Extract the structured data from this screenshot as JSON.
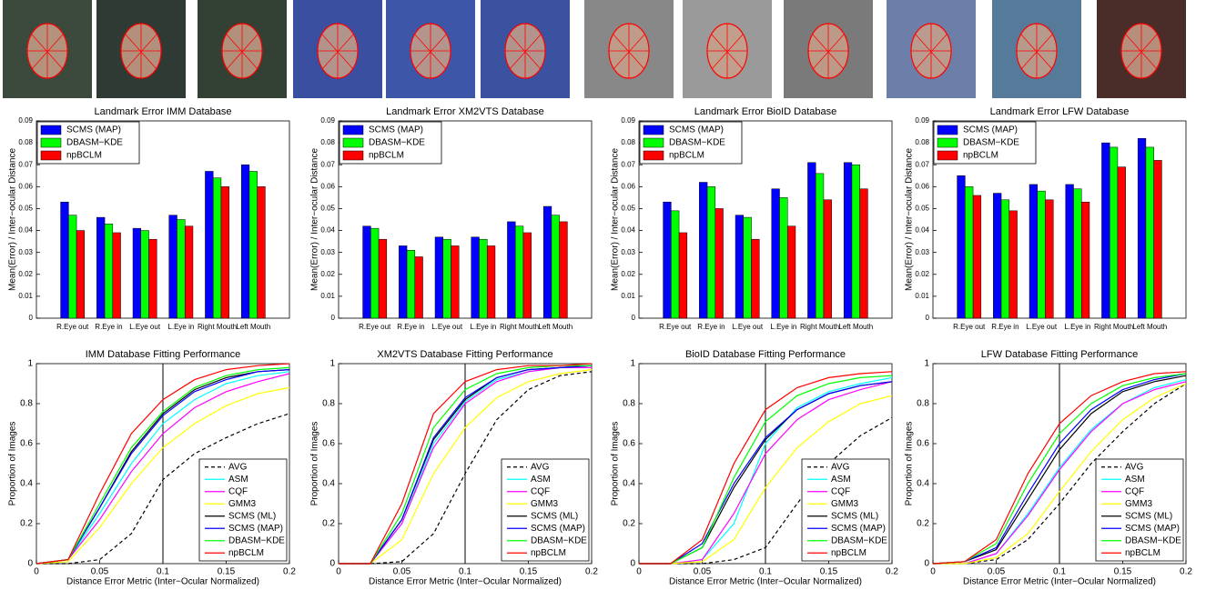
{
  "chart_data": [
    {
      "type": "bar",
      "title": "Landmark Error IMM Database",
      "ylabel": "Mean(Error) / Inter−ocular Distance",
      "categories": [
        "R.Eye out",
        "R.Eye in",
        "L.Eye out",
        "L.Eye in",
        "Right Mouth",
        "Left Mouth"
      ],
      "series": [
        {
          "name": "SCMS (MAP)",
          "color": "#0000ff",
          "values": [
            0.053,
            0.046,
            0.041,
            0.047,
            0.067,
            0.07
          ]
        },
        {
          "name": "DBASM−KDE",
          "color": "#00ff00",
          "values": [
            0.047,
            0.043,
            0.04,
            0.045,
            0.064,
            0.067
          ]
        },
        {
          "name": "npBCLM",
          "color": "#ff0000",
          "values": [
            0.04,
            0.039,
            0.036,
            0.042,
            0.06,
            0.06
          ]
        }
      ],
      "ylim": [
        0,
        0.09
      ],
      "yticks": [
        0,
        0.01,
        0.02,
        0.03,
        0.04,
        0.05,
        0.06,
        0.07,
        0.08,
        0.09
      ],
      "legend": "upper left"
    },
    {
      "type": "bar",
      "title": "Landmark Error XM2VTS Database",
      "ylabel": "Mean(Error) / Inter−ocular Distance",
      "categories": [
        "R.Eye out",
        "R.Eye in",
        "L.Eye out",
        "L.Eye in",
        "Right Mouth",
        "Left Mouth"
      ],
      "series": [
        {
          "name": "SCMS (MAP)",
          "color": "#0000ff",
          "values": [
            0.042,
            0.033,
            0.037,
            0.037,
            0.044,
            0.051
          ]
        },
        {
          "name": "DBASM−KDE",
          "color": "#00ff00",
          "values": [
            0.041,
            0.031,
            0.036,
            0.036,
            0.042,
            0.047
          ]
        },
        {
          "name": "npBCLM",
          "color": "#ff0000",
          "values": [
            0.036,
            0.028,
            0.033,
            0.033,
            0.039,
            0.044
          ]
        }
      ],
      "ylim": [
        0,
        0.09
      ],
      "yticks": [
        0,
        0.01,
        0.02,
        0.03,
        0.04,
        0.05,
        0.06,
        0.07,
        0.08,
        0.09
      ],
      "legend": "upper left"
    },
    {
      "type": "bar",
      "title": "Landmark Error BioID Database",
      "ylabel": "Mean(Error) / Inter−ocular Distance",
      "categories": [
        "R.Eye out",
        "R.Eye in",
        "L.Eye out",
        "L.Eye in",
        "Right Mouth",
        "Left Mouth"
      ],
      "series": [
        {
          "name": "SCMS (MAP)",
          "color": "#0000ff",
          "values": [
            0.053,
            0.062,
            0.047,
            0.059,
            0.071,
            0.071
          ]
        },
        {
          "name": "DBASM−KDE",
          "color": "#00ff00",
          "values": [
            0.049,
            0.06,
            0.046,
            0.055,
            0.066,
            0.07
          ]
        },
        {
          "name": "npBCLM",
          "color": "#ff0000",
          "values": [
            0.039,
            0.05,
            0.036,
            0.042,
            0.054,
            0.059
          ]
        }
      ],
      "ylim": [
        0,
        0.09
      ],
      "yticks": [
        0,
        0.01,
        0.02,
        0.03,
        0.04,
        0.05,
        0.06,
        0.07,
        0.08,
        0.09
      ],
      "legend": "upper left"
    },
    {
      "type": "bar",
      "title": "Landmark Error LFW Database",
      "ylabel": "Mean(Error) / Inter−ocular Distance",
      "categories": [
        "R.Eye out",
        "R.Eye in",
        "L.Eye out",
        "L.Eye in",
        "Right Mouth",
        "Left Mouth"
      ],
      "series": [
        {
          "name": "SCMS (MAP)",
          "color": "#0000ff",
          "values": [
            0.065,
            0.057,
            0.061,
            0.061,
            0.08,
            0.082
          ]
        },
        {
          "name": "DBASM−KDE",
          "color": "#00ff00",
          "values": [
            0.06,
            0.054,
            0.058,
            0.059,
            0.078,
            0.078
          ]
        },
        {
          "name": "npBCLM",
          "color": "#ff0000",
          "values": [
            0.056,
            0.049,
            0.054,
            0.053,
            0.069,
            0.072
          ]
        }
      ],
      "ylim": [
        0,
        0.09
      ],
      "yticks": [
        0,
        0.01,
        0.02,
        0.03,
        0.04,
        0.05,
        0.06,
        0.07,
        0.08,
        0.09
      ],
      "legend": "upper left"
    },
    {
      "type": "line",
      "title": "IMM Database Fitting Performance",
      "xlabel": "Distance Error Metric (Inter−Ocular Normalized)",
      "ylabel": "Proportion of Images",
      "x": [
        0,
        0.025,
        0.05,
        0.075,
        0.1,
        0.125,
        0.15,
        0.175,
        0.2
      ],
      "threshold": 0.1,
      "series": [
        {
          "name": "AVG",
          "color": "#000000",
          "linestyle": "dashed",
          "values": [
            0,
            0,
            0.02,
            0.15,
            0.42,
            0.55,
            0.63,
            0.7,
            0.75
          ]
        },
        {
          "name": "ASM",
          "color": "#00ffff",
          "values": [
            0,
            0.02,
            0.25,
            0.5,
            0.7,
            0.82,
            0.9,
            0.94,
            0.96
          ]
        },
        {
          "name": "CQF",
          "color": "#ff00ff",
          "values": [
            0,
            0.02,
            0.22,
            0.46,
            0.65,
            0.78,
            0.86,
            0.91,
            0.95
          ]
        },
        {
          "name": "GMM3",
          "color": "#ffff00",
          "values": [
            0,
            0.01,
            0.18,
            0.4,
            0.58,
            0.7,
            0.79,
            0.85,
            0.88
          ]
        },
        {
          "name": "SCMS (ML)",
          "color": "#000000",
          "values": [
            0,
            0.02,
            0.28,
            0.56,
            0.75,
            0.87,
            0.93,
            0.96,
            0.97
          ]
        },
        {
          "name": "SCMS (MAP)",
          "color": "#0000ff",
          "values": [
            0,
            0.02,
            0.28,
            0.55,
            0.74,
            0.86,
            0.92,
            0.96,
            0.97
          ]
        },
        {
          "name": "DBASM−KDE",
          "color": "#00ff00",
          "values": [
            0,
            0.02,
            0.3,
            0.58,
            0.76,
            0.88,
            0.94,
            0.97,
            0.98
          ]
        },
        {
          "name": "npBCLM",
          "color": "#ff0000",
          "values": [
            0,
            0.02,
            0.35,
            0.65,
            0.82,
            0.92,
            0.97,
            0.99,
            1.0
          ]
        }
      ],
      "xlim": [
        0,
        0.2
      ],
      "xticks": [
        0,
        0.05,
        0.1,
        0.15,
        0.2
      ],
      "ylim": [
        0,
        1
      ],
      "yticks": [
        0,
        0.2,
        0.4,
        0.6,
        0.8,
        1
      ],
      "legend": "lower right"
    },
    {
      "type": "line",
      "title": "XM2VTS Database Fitting Performance",
      "xlabel": "Distance Error Metric (Inter−Ocular Normalized)",
      "ylabel": "Proportion of Images",
      "x": [
        0,
        0.025,
        0.05,
        0.075,
        0.1,
        0.125,
        0.15,
        0.175,
        0.2
      ],
      "threshold": 0.1,
      "series": [
        {
          "name": "AVG",
          "color": "#000000",
          "linestyle": "dashed",
          "values": [
            0,
            0,
            0.01,
            0.15,
            0.45,
            0.72,
            0.87,
            0.94,
            0.96
          ]
        },
        {
          "name": "ASM",
          "color": "#00ffff",
          "values": [
            0,
            0,
            0.2,
            0.6,
            0.81,
            0.92,
            0.96,
            0.98,
            0.99
          ]
        },
        {
          "name": "CQF",
          "color": "#ff00ff",
          "values": [
            0,
            0,
            0.2,
            0.58,
            0.8,
            0.91,
            0.96,
            0.98,
            0.98
          ]
        },
        {
          "name": "GMM3",
          "color": "#ffff00",
          "values": [
            0,
            0,
            0.12,
            0.45,
            0.68,
            0.83,
            0.91,
            0.95,
            0.97
          ]
        },
        {
          "name": "SCMS (ML)",
          "color": "#000000",
          "values": [
            0,
            0,
            0.22,
            0.62,
            0.82,
            0.93,
            0.97,
            0.98,
            0.99
          ]
        },
        {
          "name": "SCMS (MAP)",
          "color": "#0000ff",
          "values": [
            0,
            0,
            0.22,
            0.63,
            0.83,
            0.93,
            0.97,
            0.98,
            0.99
          ]
        },
        {
          "name": "DBASM−KDE",
          "color": "#00ff00",
          "values": [
            0,
            0,
            0.25,
            0.68,
            0.87,
            0.95,
            0.98,
            0.99,
            0.99
          ]
        },
        {
          "name": "npBCLM",
          "color": "#ff0000",
          "values": [
            0,
            0,
            0.3,
            0.75,
            0.91,
            0.97,
            0.99,
            0.99,
            1.0
          ]
        }
      ],
      "xlim": [
        0,
        0.2
      ],
      "xticks": [
        0,
        0.05,
        0.1,
        0.15,
        0.2
      ],
      "ylim": [
        0,
        1
      ],
      "yticks": [
        0,
        0.2,
        0.4,
        0.6,
        0.8,
        1
      ],
      "legend": "lower right"
    },
    {
      "type": "line",
      "title": "BioID Database Fitting Performance",
      "xlabel": "Distance Error Metric (Inter−Ocular Normalized)",
      "ylabel": "Proportion of Images",
      "x": [
        0,
        0.025,
        0.05,
        0.075,
        0.1,
        0.125,
        0.15,
        0.175,
        0.2
      ],
      "threshold": 0.1,
      "series": [
        {
          "name": "AVG",
          "color": "#000000",
          "linestyle": "dashed",
          "values": [
            0,
            0,
            0,
            0.02,
            0.08,
            0.3,
            0.5,
            0.64,
            0.73
          ]
        },
        {
          "name": "ASM",
          "color": "#00ffff",
          "values": [
            0,
            0,
            0.02,
            0.2,
            0.6,
            0.78,
            0.86,
            0.9,
            0.93
          ]
        },
        {
          "name": "CQF",
          "color": "#ff00ff",
          "values": [
            0,
            0,
            0.02,
            0.25,
            0.55,
            0.72,
            0.82,
            0.87,
            0.91
          ]
        },
        {
          "name": "GMM3",
          "color": "#ffff00",
          "values": [
            0,
            0,
            0.01,
            0.12,
            0.38,
            0.58,
            0.71,
            0.8,
            0.84
          ]
        },
        {
          "name": "SCMS (ML)",
          "color": "#000000",
          "values": [
            0,
            0,
            0.08,
            0.38,
            0.62,
            0.77,
            0.85,
            0.89,
            0.91
          ]
        },
        {
          "name": "SCMS (MAP)",
          "color": "#0000ff",
          "values": [
            0,
            0,
            0.1,
            0.4,
            0.63,
            0.77,
            0.85,
            0.89,
            0.91
          ]
        },
        {
          "name": "DBASM−KDE",
          "color": "#00ff00",
          "values": [
            0,
            0,
            0.08,
            0.43,
            0.71,
            0.84,
            0.9,
            0.93,
            0.94
          ]
        },
        {
          "name": "npBCLM",
          "color": "#ff0000",
          "values": [
            0,
            0,
            0.12,
            0.5,
            0.77,
            0.88,
            0.93,
            0.95,
            0.96
          ]
        }
      ],
      "xlim": [
        0,
        0.2
      ],
      "xticks": [
        0,
        0.05,
        0.1,
        0.15,
        0.2
      ],
      "ylim": [
        0,
        1
      ],
      "yticks": [
        0,
        0.2,
        0.4,
        0.6,
        0.8,
        1
      ],
      "legend": "lower right"
    },
    {
      "type": "line",
      "title": "LFW Database Fitting Performance",
      "xlabel": "Distance Error Metric (Inter−Ocular Normalized)",
      "ylabel": "Proportion of Images",
      "x": [
        0,
        0.025,
        0.05,
        0.075,
        0.1,
        0.125,
        0.15,
        0.175,
        0.2
      ],
      "threshold": 0.1,
      "series": [
        {
          "name": "AVG",
          "color": "#000000",
          "linestyle": "dashed",
          "values": [
            0,
            0,
            0.02,
            0.12,
            0.3,
            0.5,
            0.66,
            0.8,
            0.9
          ]
        },
        {
          "name": "ASM",
          "color": "#00ffff",
          "values": [
            0,
            0,
            0.05,
            0.25,
            0.48,
            0.67,
            0.8,
            0.88,
            0.92
          ]
        },
        {
          "name": "CQF",
          "color": "#ff00ff",
          "values": [
            0,
            0,
            0.05,
            0.24,
            0.47,
            0.66,
            0.8,
            0.87,
            0.91
          ]
        },
        {
          "name": "GMM3",
          "color": "#ffff00",
          "values": [
            0,
            0,
            0.03,
            0.15,
            0.36,
            0.56,
            0.72,
            0.83,
            0.9
          ]
        },
        {
          "name": "SCMS (ML)",
          "color": "#000000",
          "values": [
            0,
            0.01,
            0.07,
            0.32,
            0.57,
            0.75,
            0.86,
            0.91,
            0.94
          ]
        },
        {
          "name": "SCMS (MAP)",
          "color": "#0000ff",
          "values": [
            0,
            0.01,
            0.08,
            0.35,
            0.6,
            0.77,
            0.87,
            0.92,
            0.95
          ]
        },
        {
          "name": "DBASM−KDE",
          "color": "#00ff00",
          "values": [
            0,
            0.01,
            0.1,
            0.4,
            0.65,
            0.8,
            0.89,
            0.93,
            0.95
          ]
        },
        {
          "name": "npBCLM",
          "color": "#ff0000",
          "values": [
            0,
            0.01,
            0.12,
            0.45,
            0.7,
            0.84,
            0.91,
            0.95,
            0.96
          ]
        }
      ],
      "xlim": [
        0,
        0.2
      ],
      "xticks": [
        0,
        0.05,
        0.1,
        0.15,
        0.2
      ],
      "ylim": [
        0,
        1
      ],
      "yticks": [
        0,
        0.2,
        0.4,
        0.6,
        0.8,
        1
      ],
      "legend": "lower right"
    }
  ]
}
